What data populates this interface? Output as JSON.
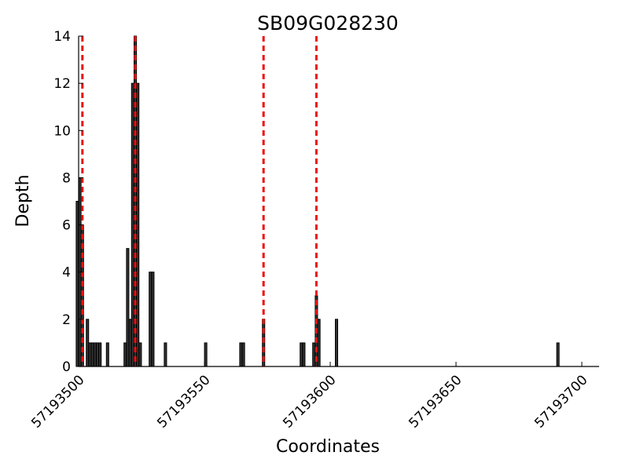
{
  "chart_data": {
    "type": "bar",
    "title": "SB09G028230",
    "xlabel": "Coordinates",
    "ylabel": "Depth",
    "xlim": [
      57193500,
      57193700
    ],
    "ylim": [
      0,
      14
    ],
    "xticks": [
      57193500,
      57193550,
      57193600,
      57193650,
      57193700
    ],
    "yticks": [
      0,
      2,
      4,
      6,
      8,
      10,
      12,
      14
    ],
    "xtick_labels": [
      "57193500",
      "57193550",
      "57193600",
      "57193650",
      "57193700"
    ],
    "ytick_labels": [
      "0",
      "2",
      "4",
      "6",
      "8",
      "10",
      "12",
      "14"
    ],
    "grid": false,
    "bar_color": "#333333",
    "bar_edge_color": "#000000",
    "marker_color": "#ee1111",
    "markers": [
      57193501,
      57193522,
      57193573,
      57193594
    ],
    "bars": [
      {
        "x": 57193499,
        "depth": 7
      },
      {
        "x": 57193500,
        "depth": 8
      },
      {
        "x": 57193501,
        "depth": 6
      },
      {
        "x": 57193503,
        "depth": 2
      },
      {
        "x": 57193504,
        "depth": 1
      },
      {
        "x": 57193505,
        "depth": 1
      },
      {
        "x": 57193506,
        "depth": 1
      },
      {
        "x": 57193507,
        "depth": 1
      },
      {
        "x": 57193508,
        "depth": 1
      },
      {
        "x": 57193511,
        "depth": 1
      },
      {
        "x": 57193518,
        "depth": 1
      },
      {
        "x": 57193519,
        "depth": 5
      },
      {
        "x": 57193520,
        "depth": 2
      },
      {
        "x": 57193521,
        "depth": 12
      },
      {
        "x": 57193522,
        "depth": 14
      },
      {
        "x": 57193523,
        "depth": 12
      },
      {
        "x": 57193524,
        "depth": 1
      },
      {
        "x": 57193528,
        "depth": 4
      },
      {
        "x": 57193529,
        "depth": 4
      },
      {
        "x": 57193534,
        "depth": 1
      },
      {
        "x": 57193550,
        "depth": 1
      },
      {
        "x": 57193564,
        "depth": 1
      },
      {
        "x": 57193565,
        "depth": 1
      },
      {
        "x": 57193573,
        "depth": 2
      },
      {
        "x": 57193588,
        "depth": 1
      },
      {
        "x": 57193589,
        "depth": 1
      },
      {
        "x": 57193593,
        "depth": 1
      },
      {
        "x": 57193594,
        "depth": 3
      },
      {
        "x": 57193595,
        "depth": 2
      },
      {
        "x": 57193602,
        "depth": 2
      },
      {
        "x": 57193690,
        "depth": 1
      }
    ]
  }
}
